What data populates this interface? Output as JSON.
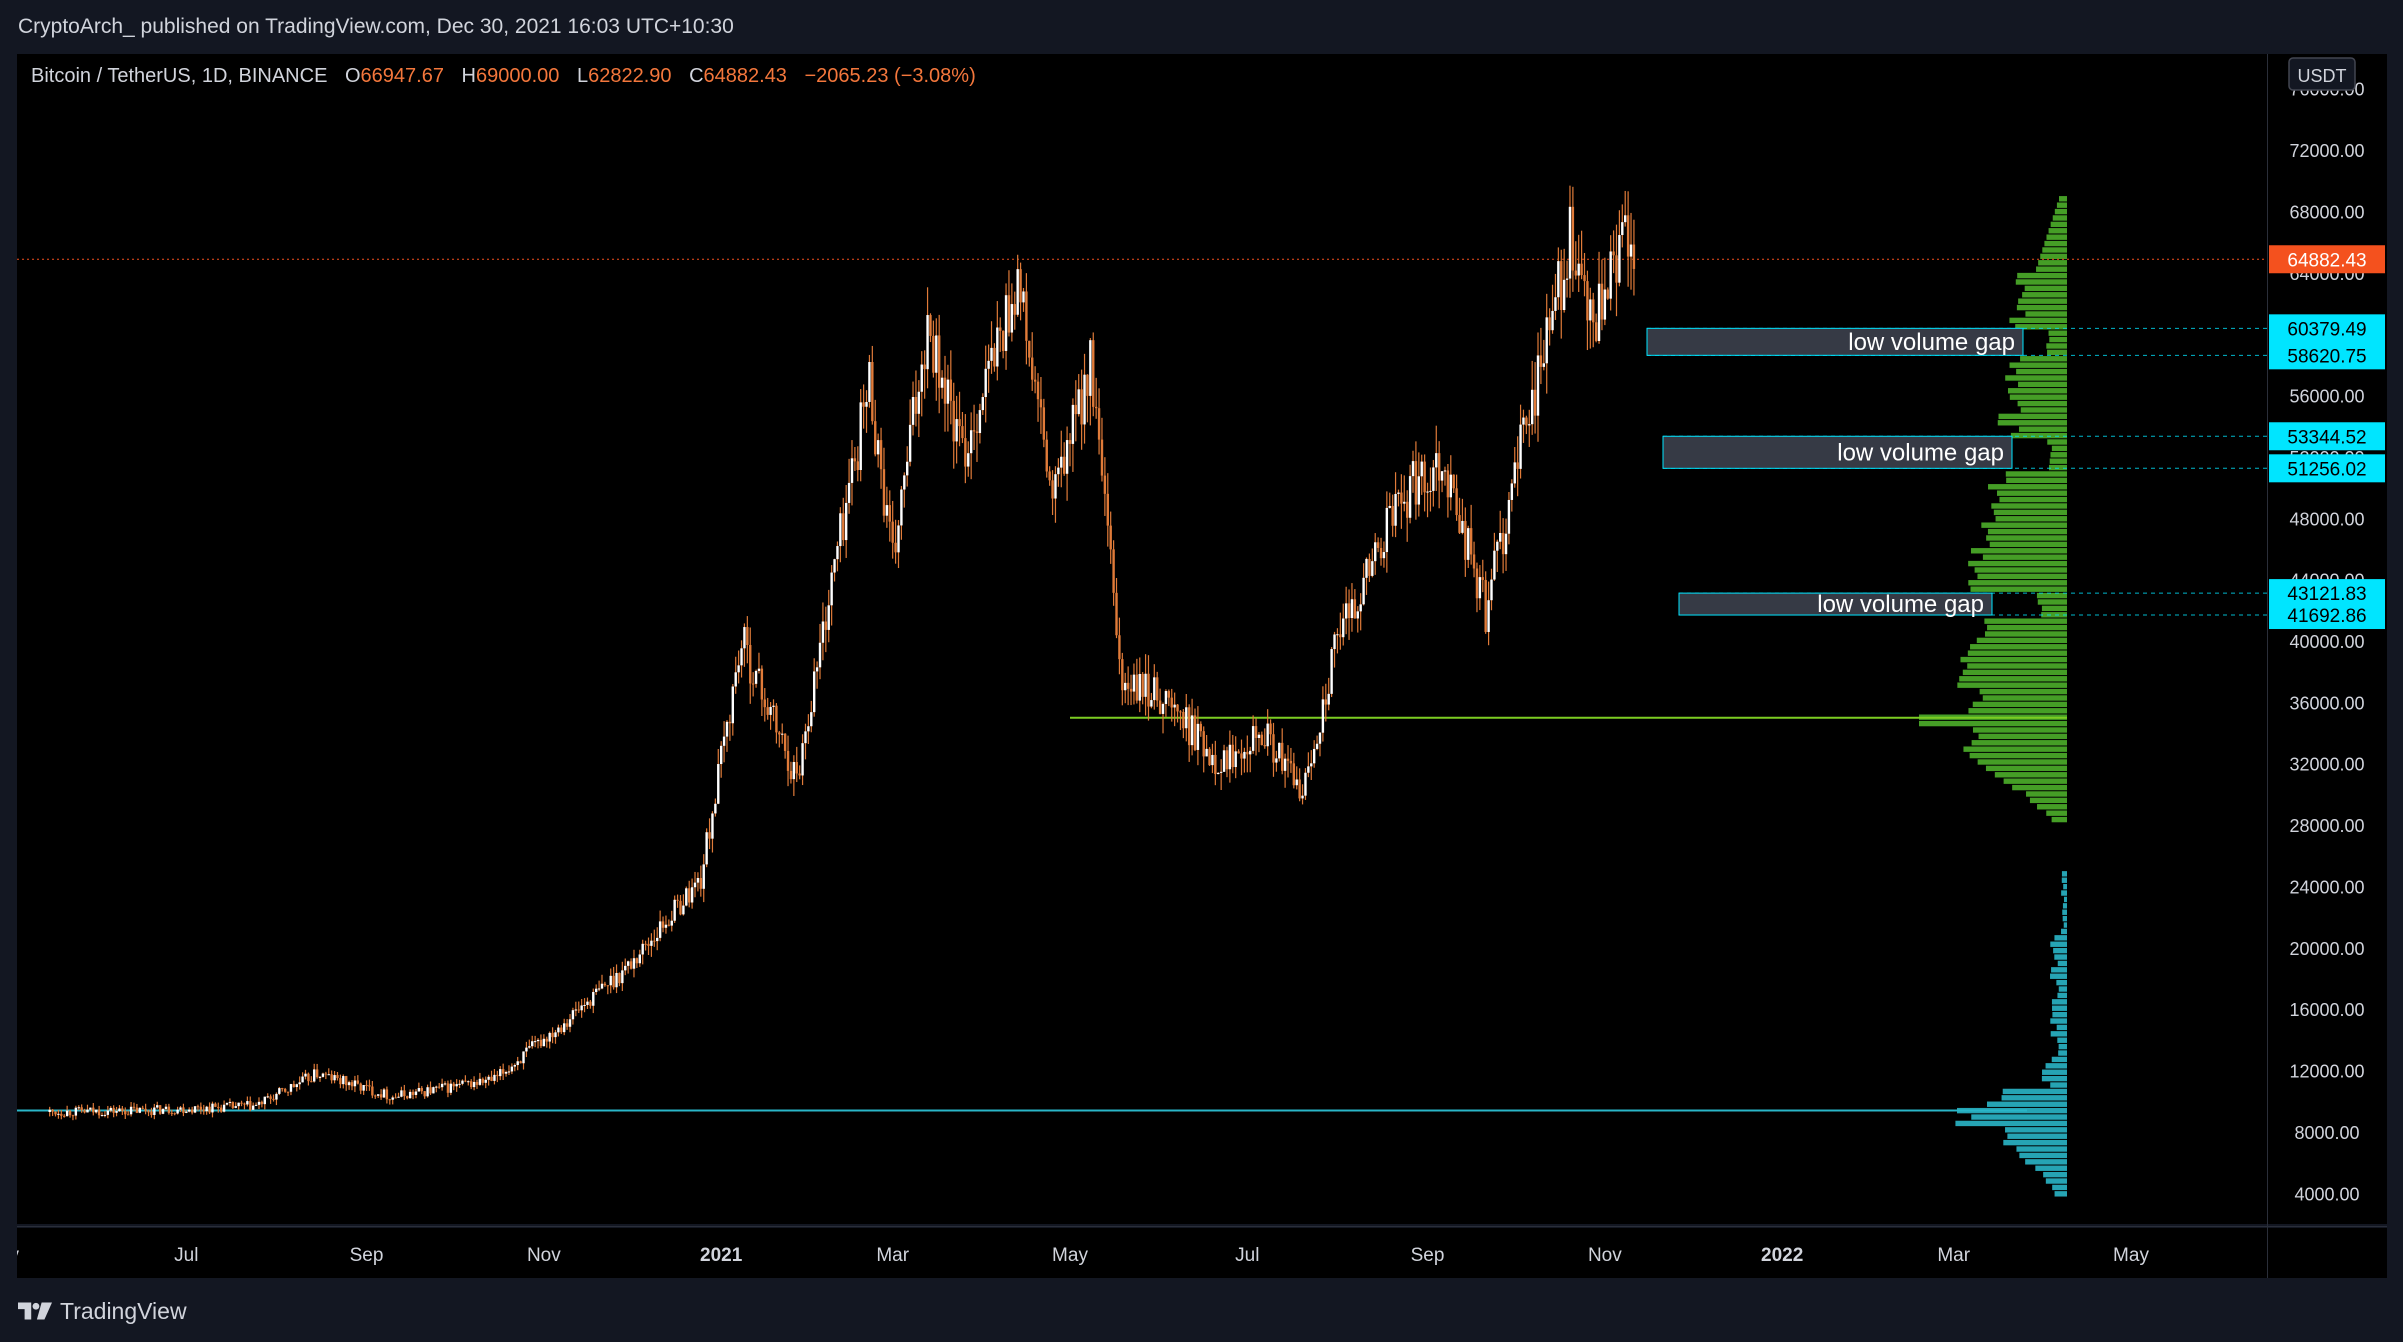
{
  "header": {
    "publisher_line": "CryptoArch_ published on TradingView.com, Dec 30, 2021 16:03 UTC+10:30"
  },
  "legend": {
    "symbol": "Bitcoin / TetherUS, 1D, BINANCE",
    "o_label": "O",
    "o_value": "66947.67",
    "h_label": "H",
    "h_value": "69000.00",
    "l_label": "L",
    "l_value": "62822.90",
    "c_label": "C",
    "c_value": "64882.43",
    "change": "−2065.23 (−3.08%)"
  },
  "price_axis": {
    "currency": "USDT",
    "ticks": [
      "76000.00",
      "72000.00",
      "68000.00",
      "64000.00",
      "60000.00",
      "56000.00",
      "52000.00",
      "48000.00",
      "44000.00",
      "40000.00",
      "36000.00",
      "32000.00",
      "28000.00",
      "24000.00",
      "20000.00",
      "16000.00",
      "12000.00",
      "8000.00",
      "4000.00"
    ],
    "current_price": "64882.43",
    "markers": [
      "60379.49",
      "58620.75",
      "53344.52",
      "51256.02",
      "43121.83",
      "41692.86"
    ]
  },
  "time_axis": {
    "labels": [
      {
        "text": "ay",
        "bold": false
      },
      {
        "text": "Jul",
        "bold": false
      },
      {
        "text": "Sep",
        "bold": false
      },
      {
        "text": "Nov",
        "bold": false
      },
      {
        "text": "2021",
        "bold": true
      },
      {
        "text": "Mar",
        "bold": false
      },
      {
        "text": "May",
        "bold": false
      },
      {
        "text": "Jul",
        "bold": false
      },
      {
        "text": "Sep",
        "bold": false
      },
      {
        "text": "Nov",
        "bold": false
      },
      {
        "text": "2022",
        "bold": true
      },
      {
        "text": "Mar",
        "bold": false
      },
      {
        "text": "May",
        "bold": false
      }
    ]
  },
  "annotations": [
    {
      "text": "low volume gap",
      "top": 60379.49,
      "bottom": 58620.75
    },
    {
      "text": "low volume gap",
      "top": 53344.52,
      "bottom": 51256.02
    },
    {
      "text": "low volume gap",
      "top": 43121.83,
      "bottom": 41692.86
    }
  ],
  "footer": {
    "brand": "TradingView"
  },
  "colors": {
    "background": "#000000",
    "candle": "#e07b39",
    "profile_green": "#4caf2a",
    "profile_cyan": "#2ab6c8",
    "cyan_marker": "#00e5ff",
    "current_price": "#f4511e",
    "poc_line": "#7ccc22"
  },
  "chart_data": {
    "type": "candlestick",
    "title": "Bitcoin / TetherUS, 1D, BINANCE",
    "ylim": [
      2000,
      78000
    ],
    "x_range": [
      "2020-05",
      "2022-05"
    ],
    "price_anchors": [
      {
        "date": "2020-05-15",
        "price": 9300
      },
      {
        "date": "2020-06-15",
        "price": 9400
      },
      {
        "date": "2020-07-25",
        "price": 9700
      },
      {
        "date": "2020-08-15",
        "price": 11800
      },
      {
        "date": "2020-09-10",
        "price": 10300
      },
      {
        "date": "2020-10-15",
        "price": 11400
      },
      {
        "date": "2020-11-10",
        "price": 15500
      },
      {
        "date": "2020-12-01",
        "price": 19000
      },
      {
        "date": "2020-12-25",
        "price": 24500
      },
      {
        "date": "2021-01-08",
        "price": 40000
      },
      {
        "date": "2021-01-27",
        "price": 31000
      },
      {
        "date": "2021-02-10",
        "price": 46000
      },
      {
        "date": "2021-02-21",
        "price": 57000
      },
      {
        "date": "2021-03-01",
        "price": 45000
      },
      {
        "date": "2021-03-13",
        "price": 61000
      },
      {
        "date": "2021-03-25",
        "price": 52000
      },
      {
        "date": "2021-04-13",
        "price": 63500
      },
      {
        "date": "2021-04-25",
        "price": 49000
      },
      {
        "date": "2021-05-08",
        "price": 58000
      },
      {
        "date": "2021-05-19",
        "price": 37000
      },
      {
        "date": "2021-06-01",
        "price": 36500
      },
      {
        "date": "2021-06-22",
        "price": 32000
      },
      {
        "date": "2021-07-05",
        "price": 34500
      },
      {
        "date": "2021-07-20",
        "price": 30000
      },
      {
        "date": "2021-08-01",
        "price": 40000
      },
      {
        "date": "2021-08-22",
        "price": 49000
      },
      {
        "date": "2021-09-06",
        "price": 52000
      },
      {
        "date": "2021-09-21",
        "price": 42000
      },
      {
        "date": "2021-10-06",
        "price": 55000
      },
      {
        "date": "2021-10-20",
        "price": 66000
      },
      {
        "date": "2021-10-28",
        "price": 60000
      },
      {
        "date": "2021-11-10",
        "price": 67500
      },
      {
        "date": "2021-11-11",
        "price": 64882.43
      }
    ],
    "horizontal_lines": [
      {
        "price": 64882.43,
        "style": "dotted",
        "color": "#f4511e"
      },
      {
        "price": 35000,
        "from": "2021-05-01",
        "color": "#7ccc22"
      },
      {
        "price": 9400,
        "color": "#2ab6c8"
      }
    ],
    "volume_profile": {
      "green_range": [
        28500,
        69000
      ],
      "cyan_range": [
        4000,
        25000
      ],
      "poc": 35000,
      "low_volume_gaps": [
        [
          58620.75,
          60379.49
        ],
        [
          51256.02,
          53344.52
        ],
        [
          41692.86,
          43121.83
        ]
      ]
    }
  }
}
